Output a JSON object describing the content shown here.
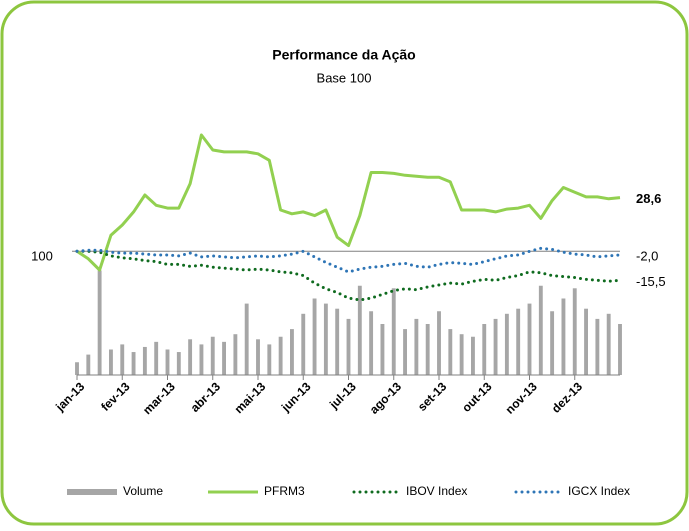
{
  "chart_data": {
    "type": "line",
    "title": "Performance da Ação",
    "subtitle": "Base 100",
    "x": [
      0,
      0.25,
      0.5,
      0.75,
      1,
      1.25,
      1.5,
      1.75,
      2,
      2.25,
      2.5,
      2.75,
      3,
      3.25,
      3.5,
      3.75,
      4,
      4.25,
      4.5,
      4.75,
      5,
      5.25,
      5.5,
      5.75,
      6,
      6.25,
      6.5,
      6.75,
      7,
      7.25,
      7.5,
      7.75,
      8,
      8.25,
      8.5,
      8.75,
      9,
      9.25,
      9.5,
      9.75,
      10,
      10.25,
      10.5,
      10.75,
      11,
      11.25,
      11.5,
      11.75,
      12
    ],
    "xlim": [
      0,
      12
    ],
    "xticks": [
      {
        "value": 0,
        "label": "jan-13"
      },
      {
        "value": 1,
        "label": "fev-13"
      },
      {
        "value": 2,
        "label": "mar-13"
      },
      {
        "value": 3,
        "label": "abr-13"
      },
      {
        "value": 4,
        "label": "mai-13"
      },
      {
        "value": 5,
        "label": "jun-13"
      },
      {
        "value": 6,
        "label": "jul-13"
      },
      {
        "value": 7,
        "label": "ago-13"
      },
      {
        "value": 8,
        "label": "set-13"
      },
      {
        "value": 9,
        "label": "out-13"
      },
      {
        "value": 10,
        "label": "nov-13"
      },
      {
        "value": 11,
        "label": "dez-13"
      }
    ],
    "ylim": [
      34,
      170
    ],
    "yticks": [
      100
    ],
    "y2lim": [
      0,
      100
    ],
    "series": [
      {
        "name": "Volume",
        "type": "bar",
        "axis": "y2",
        "color": "#a6a6a6",
        "values": [
          5,
          8,
          41,
          10,
          12,
          9,
          11,
          13,
          10,
          9,
          14,
          12,
          15,
          13,
          16,
          28,
          14,
          12,
          15,
          18,
          24,
          30,
          28,
          26,
          22,
          35,
          25,
          20,
          34,
          18,
          22,
          20,
          25,
          18,
          16,
          15,
          20,
          22,
          24,
          26,
          28,
          35,
          25,
          30,
          34,
          26,
          22,
          24,
          20
        ]
      },
      {
        "name": "PFRM3",
        "type": "line",
        "style": "solid",
        "color": "#92d050",
        "end_label": "28,6",
        "values": [
          100,
          96,
          90,
          108.5,
          114,
          121,
          130,
          124.5,
          123,
          123,
          136,
          162,
          154,
          153,
          153,
          153,
          152,
          148.5,
          122,
          120,
          121,
          119,
          122,
          107.5,
          103,
          119,
          142,
          142,
          141.5,
          140.5,
          140,
          139.5,
          139.5,
          137,
          122,
          122,
          122,
          121,
          122.5,
          123,
          124.5,
          117.5,
          127,
          134,
          131.5,
          129,
          129,
          128,
          128.6
        ]
      },
      {
        "name": "IBOV Index",
        "type": "line",
        "style": "dotted",
        "color": "#0f6b1f",
        "end_label": "-15,5",
        "values": [
          100,
          100,
          99.5,
          97.5,
          96.5,
          96,
          95,
          94.5,
          93,
          93,
          92,
          92.5,
          91.5,
          91,
          90.5,
          90,
          90.5,
          90,
          89,
          88.5,
          87,
          83,
          80,
          78,
          75,
          74,
          75,
          77,
          79,
          80,
          79.5,
          81,
          82,
          83,
          82.5,
          84,
          85,
          84.5,
          86,
          87,
          89,
          88.5,
          87,
          86.5,
          86,
          85,
          84.5,
          84,
          84.5
        ]
      },
      {
        "name": "IGCX Index",
        "type": "line",
        "style": "dotted",
        "color": "#2e75b6",
        "end_label": "-2,0",
        "values": [
          100,
          100.5,
          100.5,
          99.5,
          99,
          99,
          98.5,
          98,
          98,
          97.5,
          99,
          97,
          97.5,
          97,
          96.5,
          97,
          97.5,
          97,
          97.5,
          98.5,
          100,
          97,
          94,
          91.5,
          89,
          90.5,
          91.5,
          92,
          93,
          93.5,
          92,
          91.5,
          93,
          94,
          93.5,
          93,
          94.5,
          96,
          97.5,
          98,
          100,
          101.5,
          101,
          99.5,
          98.5,
          98,
          97,
          97.5,
          98
        ]
      }
    ]
  }
}
